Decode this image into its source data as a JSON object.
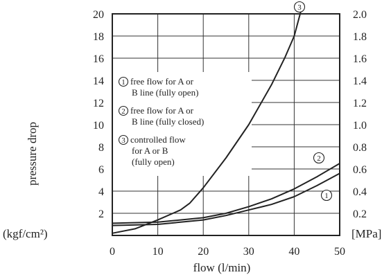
{
  "chart_data": {
    "type": "line",
    "title": "",
    "xlabel": "flow (l/min)",
    "ylabel": "pressure drop",
    "ylabel_left_unit": "(kgf/cm²)",
    "ylabel_right_unit": "[MPa]",
    "xlim": [
      0,
      50
    ],
    "ylim": [
      0,
      20
    ],
    "ylim_right": [
      0,
      2.0
    ],
    "x_ticks": [
      "0",
      "10",
      "20",
      "30",
      "40",
      "50"
    ],
    "y_ticks_left": [
      "2",
      "4",
      "6",
      "8",
      "10",
      "12",
      "14",
      "16",
      "18",
      "20"
    ],
    "y_ticks_right": [
      "0.2",
      "0.4",
      "0.6",
      "0.8",
      "1.0",
      "1.2",
      "1.4",
      "1.6",
      "1.8",
      "2.0"
    ],
    "grid": true,
    "legend": [
      {
        "marker": "1",
        "lines": [
          "free flow for A or",
          "B line (fully open)"
        ]
      },
      {
        "marker": "2",
        "lines": [
          "free flow for A or",
          "B line (fully closed)"
        ]
      },
      {
        "marker": "3",
        "lines": [
          "controlled flow",
          "for A or B",
          "(fully open)"
        ]
      }
    ],
    "series": [
      {
        "marker": "1",
        "points": [
          [
            0,
            0.9
          ],
          [
            10,
            1.0
          ],
          [
            20,
            1.4
          ],
          [
            25,
            1.8
          ],
          [
            30,
            2.3
          ],
          [
            35,
            2.8
          ],
          [
            40,
            3.5
          ],
          [
            45,
            4.5
          ],
          [
            50,
            5.6
          ]
        ]
      },
      {
        "marker": "2",
        "points": [
          [
            0,
            1.1
          ],
          [
            10,
            1.2
          ],
          [
            20,
            1.6
          ],
          [
            25,
            2.0
          ],
          [
            30,
            2.6
          ],
          [
            35,
            3.3
          ],
          [
            40,
            4.2
          ],
          [
            45,
            5.3
          ],
          [
            50,
            6.5
          ]
        ]
      },
      {
        "marker": "3",
        "points": [
          [
            0,
            0.2
          ],
          [
            5,
            0.6
          ],
          [
            10,
            1.4
          ],
          [
            15,
            2.3
          ],
          [
            17,
            2.9
          ],
          [
            20,
            4.3
          ],
          [
            25,
            7.0
          ],
          [
            30,
            10.0
          ],
          [
            35,
            13.6
          ],
          [
            38,
            16.1
          ],
          [
            40,
            18.0
          ],
          [
            41.5,
            20.3
          ]
        ]
      }
    ],
    "colors": {
      "line": "#222222",
      "grid": "#333333",
      "text": "#222222"
    }
  }
}
